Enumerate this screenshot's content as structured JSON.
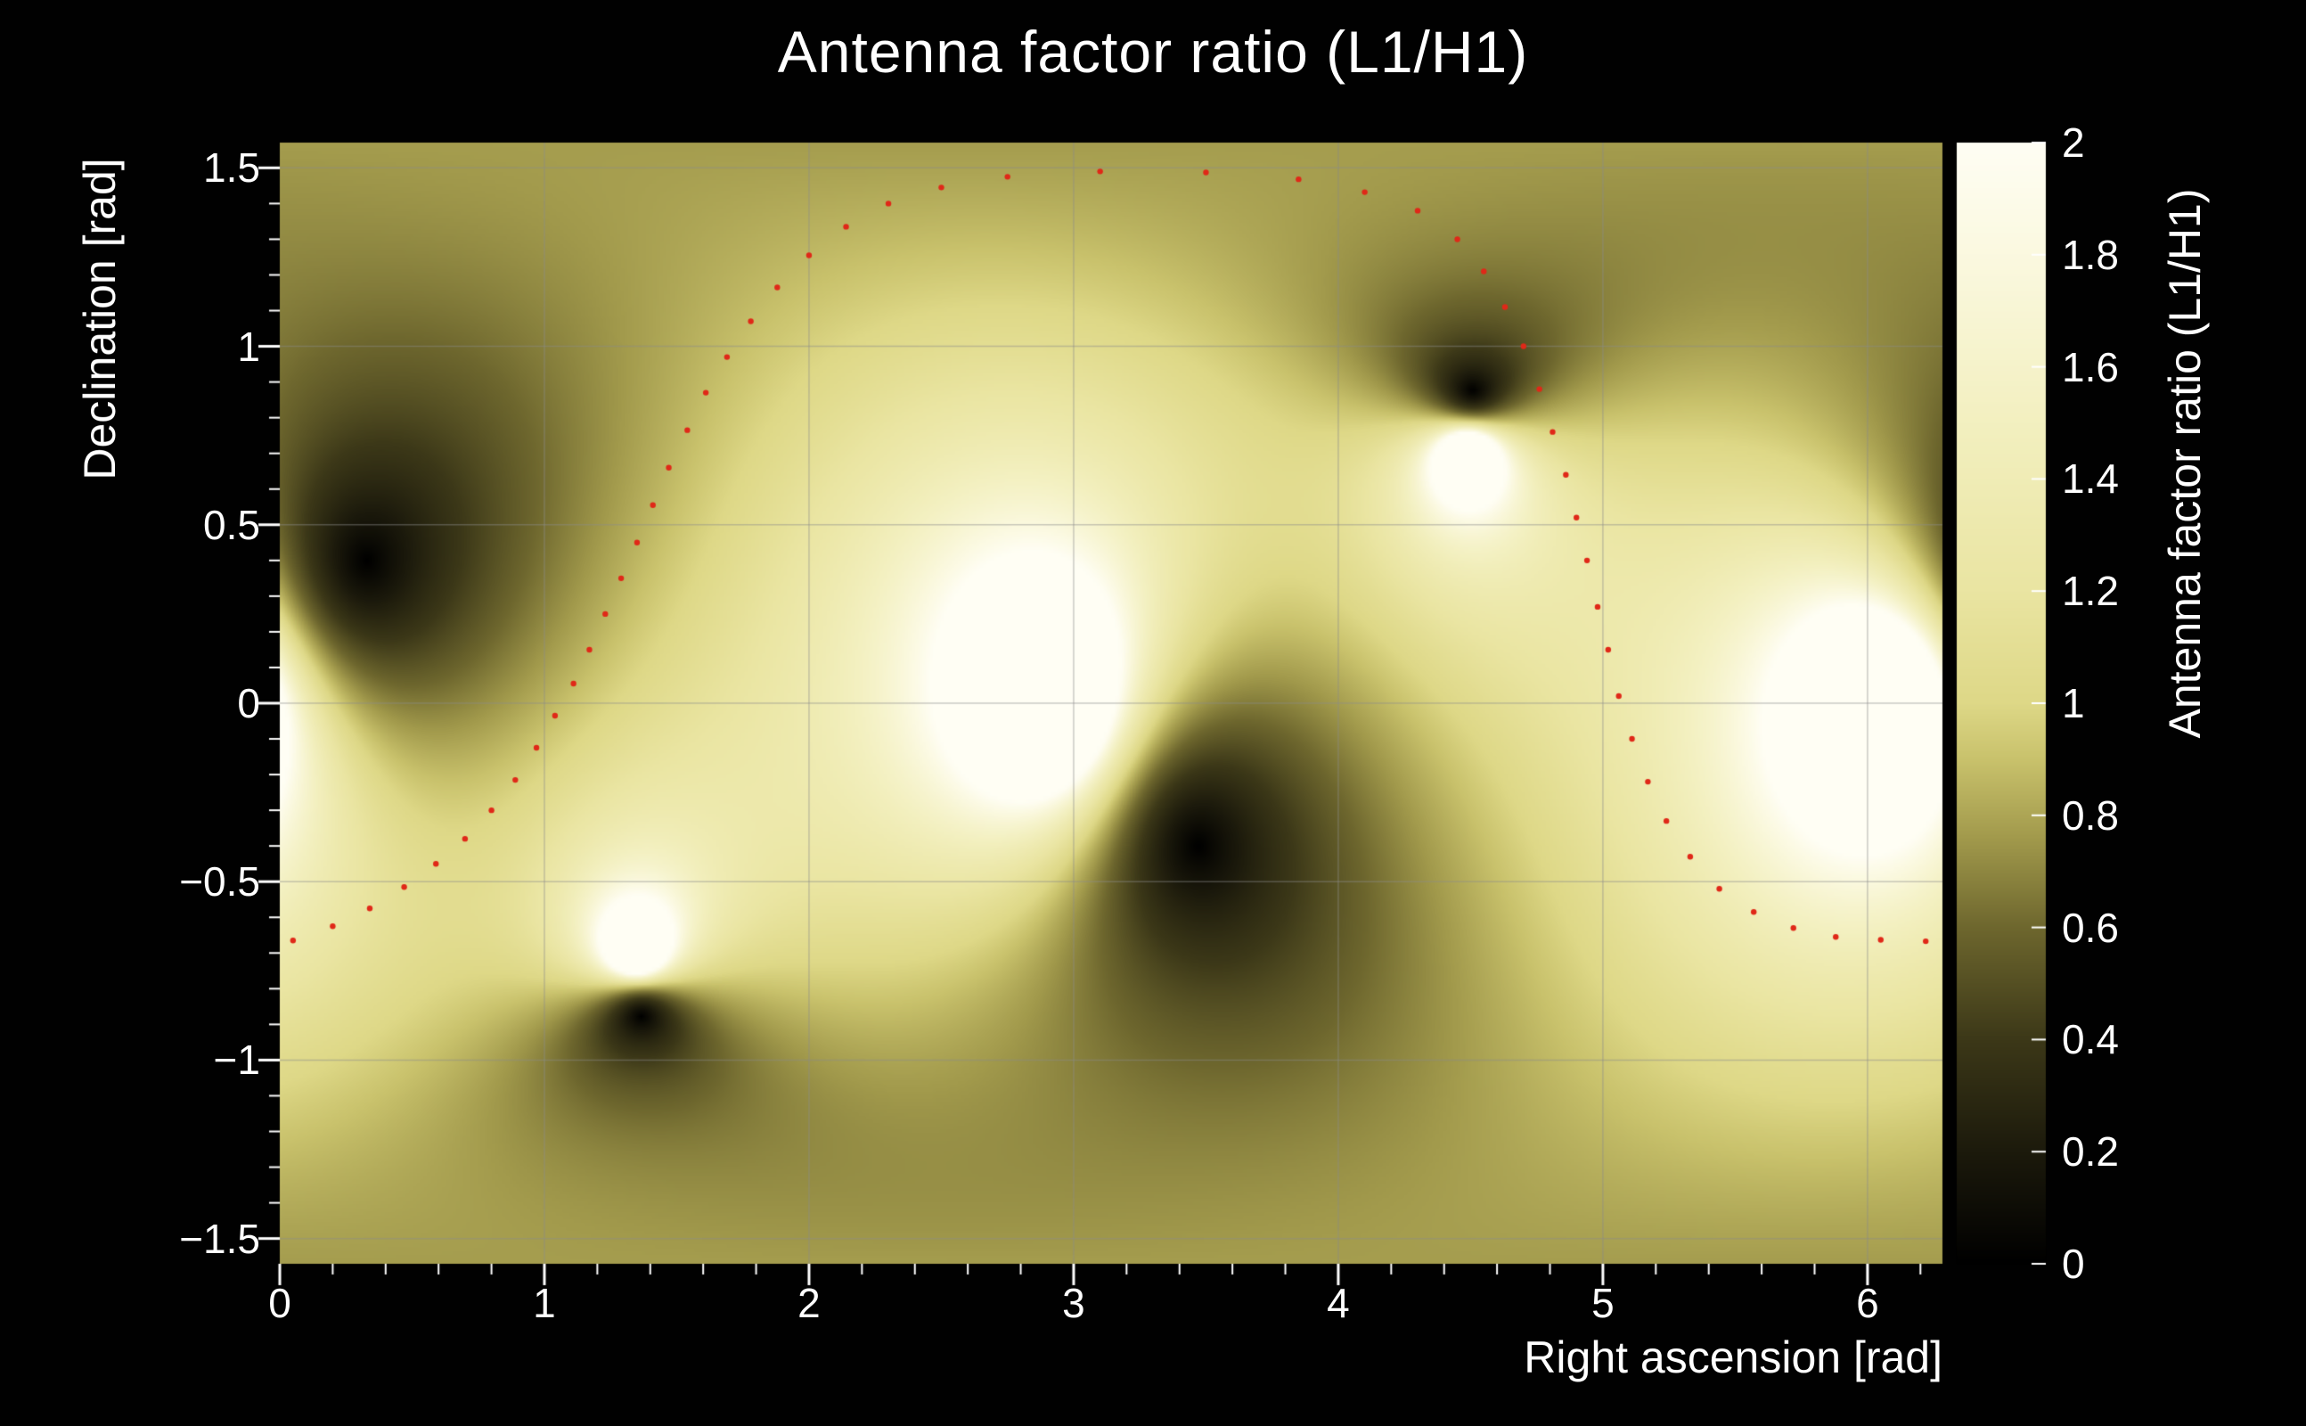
{
  "chart_data": {
    "type": "heatmap",
    "title": "Antenna factor ratio (L1/H1)",
    "xlabel": "Right ascension [rad]",
    "ylabel": "Declination [rad]",
    "zlabel": "Antenna factor ratio (L1/H1)",
    "x_range": [
      0,
      6.2832
    ],
    "y_range": [
      -1.5708,
      1.5708
    ],
    "z_range": [
      0,
      2
    ],
    "x_ticks": [
      0,
      1,
      2,
      3,
      4,
      5,
      6
    ],
    "y_ticks": [
      -1.5,
      -1,
      -0.5,
      0,
      0.5,
      1,
      1.5
    ],
    "z_ticks": [
      0,
      0.2,
      0.4,
      0.6,
      0.8,
      1,
      1.2,
      1.4,
      1.6,
      1.8,
      2
    ],
    "grid": true,
    "background_color": "#010101",
    "text_color": "#ffffff",
    "grid_color": "rgba(140,140,140,0.45)",
    "model": "ratio of L1 to H1 polarization-averaged quadrupole antenna responses, clipped at z max",
    "l1_null_points": [
      [
        0.33,
        0.4
      ],
      [
        1.35,
        -0.87
      ],
      [
        3.47,
        -0.4
      ],
      [
        4.49,
        0.87
      ]
    ],
    "h1_null_points": [
      [
        2.92,
        0.0
      ],
      [
        4.56,
        0.7
      ],
      [
        6.06,
        0.0
      ],
      [
        1.42,
        -0.7
      ]
    ],
    "colormap_stops": [
      [
        0.0,
        "#000000"
      ],
      [
        0.1,
        "#1c1a0c"
      ],
      [
        0.2,
        "#3c3818"
      ],
      [
        0.3,
        "#6e672e"
      ],
      [
        0.38,
        "#a29a4c"
      ],
      [
        0.45,
        "#c9c26c"
      ],
      [
        0.5,
        "#ded887"
      ],
      [
        0.6,
        "#eae5a2"
      ],
      [
        0.75,
        "#f3f0c0"
      ],
      [
        0.9,
        "#fbf9e0"
      ],
      [
        1.0,
        "#fffef4"
      ]
    ],
    "overlay_curve": {
      "style": "dotted",
      "color": "#e02818",
      "points": [
        [
          0.05,
          -0.665
        ],
        [
          0.2,
          -0.625
        ],
        [
          0.34,
          -0.575
        ],
        [
          0.47,
          -0.515
        ],
        [
          0.59,
          -0.45
        ],
        [
          0.7,
          -0.38
        ],
        [
          0.8,
          -0.3
        ],
        [
          0.89,
          -0.215
        ],
        [
          0.97,
          -0.125
        ],
        [
          1.04,
          -0.035
        ],
        [
          1.11,
          0.055
        ],
        [
          1.17,
          0.15
        ],
        [
          1.23,
          0.25
        ],
        [
          1.29,
          0.35
        ],
        [
          1.35,
          0.45
        ],
        [
          1.41,
          0.555
        ],
        [
          1.47,
          0.66
        ],
        [
          1.54,
          0.765
        ],
        [
          1.61,
          0.87
        ],
        [
          1.69,
          0.97
        ],
        [
          1.78,
          1.07
        ],
        [
          1.88,
          1.165
        ],
        [
          2.0,
          1.255
        ],
        [
          2.14,
          1.335
        ],
        [
          2.3,
          1.4
        ],
        [
          2.5,
          1.445
        ],
        [
          2.75,
          1.475
        ],
        [
          3.1,
          1.49
        ],
        [
          3.5,
          1.487
        ],
        [
          3.85,
          1.468
        ],
        [
          4.1,
          1.432
        ],
        [
          4.3,
          1.38
        ],
        [
          4.45,
          1.3
        ],
        [
          4.55,
          1.21
        ],
        [
          4.63,
          1.11
        ],
        [
          4.7,
          1.0
        ],
        [
          4.76,
          0.88
        ],
        [
          4.81,
          0.76
        ],
        [
          4.86,
          0.64
        ],
        [
          4.9,
          0.52
        ],
        [
          4.94,
          0.4
        ],
        [
          4.98,
          0.27
        ],
        [
          5.02,
          0.15
        ],
        [
          5.06,
          0.02
        ],
        [
          5.11,
          -0.1
        ],
        [
          5.17,
          -0.22
        ],
        [
          5.24,
          -0.33
        ],
        [
          5.33,
          -0.43
        ],
        [
          5.44,
          -0.52
        ],
        [
          5.57,
          -0.585
        ],
        [
          5.72,
          -0.63
        ],
        [
          5.88,
          -0.655
        ],
        [
          6.05,
          -0.663
        ],
        [
          6.22,
          -0.667
        ]
      ]
    }
  }
}
